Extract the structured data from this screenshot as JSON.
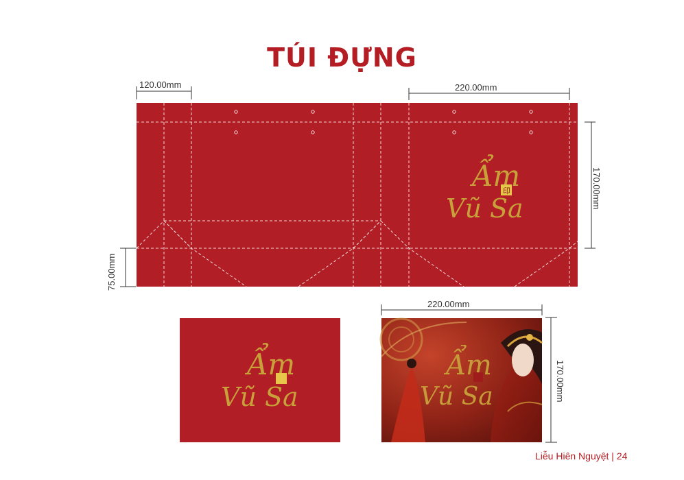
{
  "page": {
    "title": "TÚI ĐỰNG",
    "footer": "Liễu Hiên Nguyệt | 24"
  },
  "dimensions": {
    "side_width": "120.00mm",
    "front_width": "220.00mm",
    "height": "170.00mm",
    "bottom": "75.00mm",
    "mock_width": "220.00mm",
    "mock_height": "170.00mm"
  },
  "logo": {
    "line1": "Ẩm",
    "line2": "Vũ Sa",
    "seal": "印"
  },
  "colors": {
    "brand_red": "#b31d23",
    "bag_red": "#b21e26",
    "gold": "#c9a13b"
  }
}
